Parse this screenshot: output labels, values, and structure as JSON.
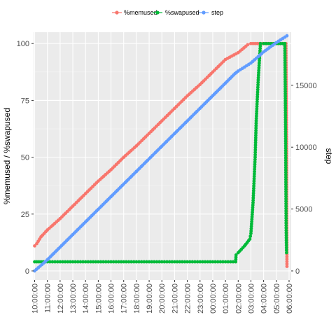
{
  "chart_data": {
    "type": "line",
    "xlabel": "",
    "ylabel_left": "%memused / %swapused",
    "ylabel_right": "step",
    "x_ticks": [
      "10:00:00",
      "11:00:00",
      "12:00:00",
      "13:00:00",
      "14:00:00",
      "15:00:00",
      "16:00:00",
      "17:00:00",
      "18:00:00",
      "19:00:00",
      "20:00:00",
      "21:00:00",
      "22:00:00",
      "23:00:00",
      "00:00:00",
      "01:00:00",
      "02:00:00",
      "03:00:00",
      "04:00:00",
      "05:00:00",
      "06:00:00"
    ],
    "xlim": [
      "09:55:00",
      "06:10:00"
    ],
    "y_left_ticks": [
      "0",
      "25",
      "50",
      "75",
      "100"
    ],
    "ylim_left": [
      -4,
      105
    ],
    "y_right_ticks": [
      "0",
      "5000",
      "10000",
      "15000"
    ],
    "ylim_right": [
      -735,
      19290
    ],
    "grid": true,
    "legend_position": "top",
    "series": [
      {
        "name": "%memused",
        "color": "#F8766D",
        "axis": "left",
        "points": [
          [
            "10:00:00",
            11
          ],
          [
            "10:10:00",
            12
          ],
          [
            "10:30:00",
            15
          ],
          [
            "11:00:00",
            18
          ],
          [
            "12:00:00",
            23
          ],
          [
            "13:00:00",
            28.5
          ],
          [
            "14:00:00",
            34
          ],
          [
            "15:00:00",
            39.5
          ],
          [
            "16:00:00",
            44.5
          ],
          [
            "17:00:00",
            50
          ],
          [
            "18:00:00",
            55
          ],
          [
            "19:00:00",
            60.5
          ],
          [
            "20:00:00",
            66
          ],
          [
            "21:00:00",
            71.5
          ],
          [
            "22:00:00",
            77
          ],
          [
            "23:00:00",
            82
          ],
          [
            "00:00:00",
            87.5
          ],
          [
            "01:00:00",
            93
          ],
          [
            "01:30:00",
            94.5
          ],
          [
            "02:00:00",
            96
          ],
          [
            "02:45:00",
            99.5
          ],
          [
            "03:00:00",
            100
          ],
          [
            "03:40:00",
            100
          ],
          [
            "03:45:00",
            100
          ],
          [
            "05:30:00",
            100
          ],
          [
            "05:45:00",
            100
          ],
          [
            "05:48:00",
            60
          ],
          [
            "05:50:00",
            2
          ]
        ]
      },
      {
        "name": "%swapused",
        "color": "#00BA38",
        "axis": "left",
        "points": [
          [
            "10:00:00",
            4
          ],
          [
            "10:30:00",
            4
          ],
          [
            "11:00:00",
            4
          ],
          [
            "12:00:00",
            4
          ],
          [
            "13:00:00",
            4
          ],
          [
            "14:00:00",
            4
          ],
          [
            "15:00:00",
            4
          ],
          [
            "16:00:00",
            4
          ],
          [
            "17:00:00",
            4
          ],
          [
            "18:00:00",
            4
          ],
          [
            "19:00:00",
            4
          ],
          [
            "20:00:00",
            4
          ],
          [
            "21:00:00",
            4
          ],
          [
            "22:00:00",
            4
          ],
          [
            "23:00:00",
            4
          ],
          [
            "00:00:00",
            4
          ],
          [
            "01:00:00",
            4
          ],
          [
            "01:48:00",
            4
          ],
          [
            "01:50:00",
            7
          ],
          [
            "02:00:00",
            8
          ],
          [
            "02:30:00",
            11
          ],
          [
            "02:55:00",
            14
          ],
          [
            "03:00:00",
            16.5
          ],
          [
            "03:10:00",
            30
          ],
          [
            "03:20:00",
            50
          ],
          [
            "03:25:00",
            66
          ],
          [
            "03:35:00",
            85
          ],
          [
            "03:45:00",
            100
          ],
          [
            "04:00:00",
            100
          ],
          [
            "05:00:00",
            100
          ],
          [
            "05:40:00",
            100
          ],
          [
            "05:42:00",
            80
          ],
          [
            "05:44:00",
            55
          ],
          [
            "05:46:00",
            20
          ],
          [
            "05:48:00",
            8
          ]
        ]
      },
      {
        "name": "step",
        "color": "#619CFF",
        "axis": "right",
        "points": [
          [
            "10:00:00",
            0
          ],
          [
            "11:00:00",
            900
          ],
          [
            "12:00:00",
            1920
          ],
          [
            "13:00:00",
            2940
          ],
          [
            "14:00:00",
            3960
          ],
          [
            "15:00:00",
            4980
          ],
          [
            "16:00:00",
            6000
          ],
          [
            "17:00:00",
            7020
          ],
          [
            "18:00:00",
            8040
          ],
          [
            "19:00:00",
            9060
          ],
          [
            "20:00:00",
            10080
          ],
          [
            "21:00:00",
            11100
          ],
          [
            "22:00:00",
            12120
          ],
          [
            "23:00:00",
            13140
          ],
          [
            "00:00:00",
            14160
          ],
          [
            "01:00:00",
            15180
          ],
          [
            "01:45:00",
            15950
          ],
          [
            "02:00:00",
            16150
          ],
          [
            "03:00:00",
            16800
          ],
          [
            "04:00:00",
            17700
          ],
          [
            "05:00:00",
            18450
          ],
          [
            "05:50:00",
            19000
          ]
        ]
      }
    ]
  }
}
